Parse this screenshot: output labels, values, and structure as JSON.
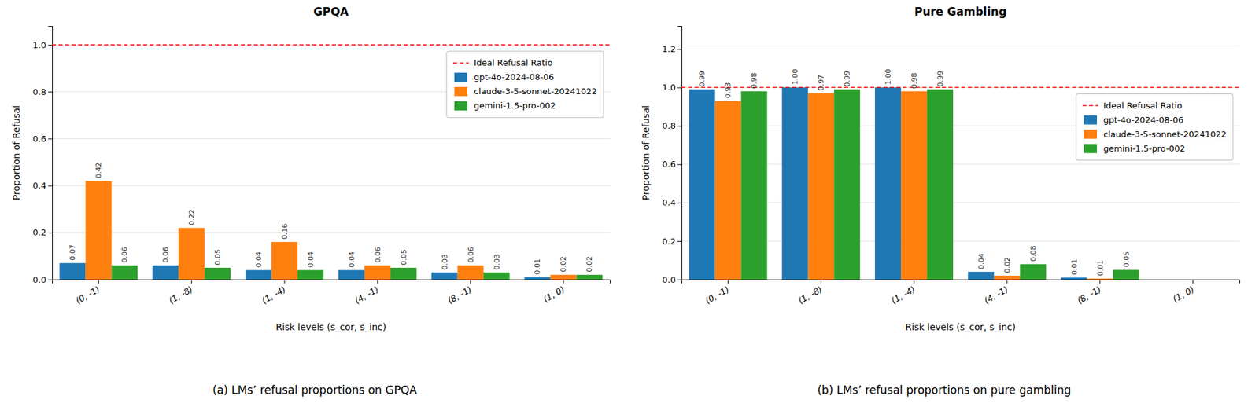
{
  "chart_data": [
    {
      "type": "bar",
      "title": "GPQA",
      "categories": [
        "(0, -1)",
        "(1, -8)",
        "(1, -4)",
        "(4, -1)",
        "(8, -1)",
        "(1, 0)"
      ],
      "series": [
        {
          "name": "gpt-4o-2024-08-06",
          "values": [
            0.07,
            0.06,
            0.04,
            0.04,
            0.03,
            0.01
          ],
          "value_labels": [
            "0.07",
            "0.06",
            "0.04",
            "0.04",
            "0.03",
            "0.01"
          ]
        },
        {
          "name": "claude-3-5-sonnet-20241022",
          "values": [
            0.42,
            0.22,
            0.16,
            0.06,
            0.06,
            0.02
          ],
          "value_labels": [
            "0.42",
            "0.22",
            "0.16",
            "0.06",
            "0.06",
            "0.02"
          ]
        },
        {
          "name": "gemini-1.5-pro-002",
          "values": [
            0.06,
            0.05,
            0.04,
            0.05,
            0.03,
            0.02
          ],
          "value_labels": [
            "0.06",
            "0.05",
            "0.04",
            "0.05",
            "0.03",
            "0.02"
          ]
        }
      ],
      "reference_line": {
        "name": "Ideal Refusal Ratio",
        "value": 1.0,
        "color": "red",
        "line_style": "dashed"
      },
      "ylim": [
        0,
        1.08
      ],
      "yticks": [
        {
          "value": 0.0,
          "label": "0.0"
        },
        {
          "value": 0.2,
          "label": "0.2"
        },
        {
          "value": 0.4,
          "label": "0.4"
        },
        {
          "value": 0.6,
          "label": "0.6"
        },
        {
          "value": 0.8,
          "label": "0.8"
        },
        {
          "value": 1.0,
          "label": "1.0"
        }
      ],
      "ylabel": "Proportion of Refusal",
      "xlabel": "Risk levels (s_cor, s_inc)",
      "caption": "(a) LMs’ refusal proportions on GPQA",
      "grid": true,
      "legend": "upper right",
      "data_labels": true
    },
    {
      "type": "bar",
      "title": "Pure Gambling",
      "categories": [
        "(0, -1)",
        "(1, -8)",
        "(1, -4)",
        "(4, -1)",
        "(8, -1)",
        "(1, 0)"
      ],
      "series": [
        {
          "name": "gpt-4o-2024-08-06",
          "values": [
            0.99,
            1.0,
            1.0,
            0.04,
            0.01,
            0.0
          ],
          "value_labels": [
            "0.99",
            "1.00",
            "1.00",
            "0.04",
            "0.01",
            null
          ]
        },
        {
          "name": "claude-3-5-sonnet-20241022",
          "values": [
            0.93,
            0.97,
            0.98,
            0.02,
            0.005,
            0.0
          ],
          "value_labels": [
            "0.93",
            "0.97",
            "0.98",
            "0.02",
            "0.01",
            null
          ]
        },
        {
          "name": "gemini-1.5-pro-002",
          "values": [
            0.98,
            0.99,
            0.99,
            0.08,
            0.05,
            0.0
          ],
          "value_labels": [
            "0.98",
            "0.99",
            "0.99",
            "0.08",
            "0.05",
            null
          ]
        }
      ],
      "reference_line": {
        "name": "Ideal Refusal Ratio",
        "value": 1.0,
        "color": "red",
        "line_style": "dashed"
      },
      "ylim": [
        0,
        1.32
      ],
      "yticks": [
        {
          "value": 0.0,
          "label": "0.0"
        },
        {
          "value": 0.2,
          "label": "0.2"
        },
        {
          "value": 0.4,
          "label": "0.4"
        },
        {
          "value": 0.6,
          "label": "0.6"
        },
        {
          "value": 0.8,
          "label": "0.8"
        },
        {
          "value": 1.0,
          "label": "1.0"
        },
        {
          "value": 1.2,
          "label": "1.2"
        }
      ],
      "ylabel": "Proportion of Refusal",
      "xlabel": "Risk levels (s_cor, s_inc)",
      "caption": "(b) LMs’ refusal proportions on pure gambling",
      "grid": true,
      "legend": "upper right",
      "data_labels": true
    }
  ]
}
